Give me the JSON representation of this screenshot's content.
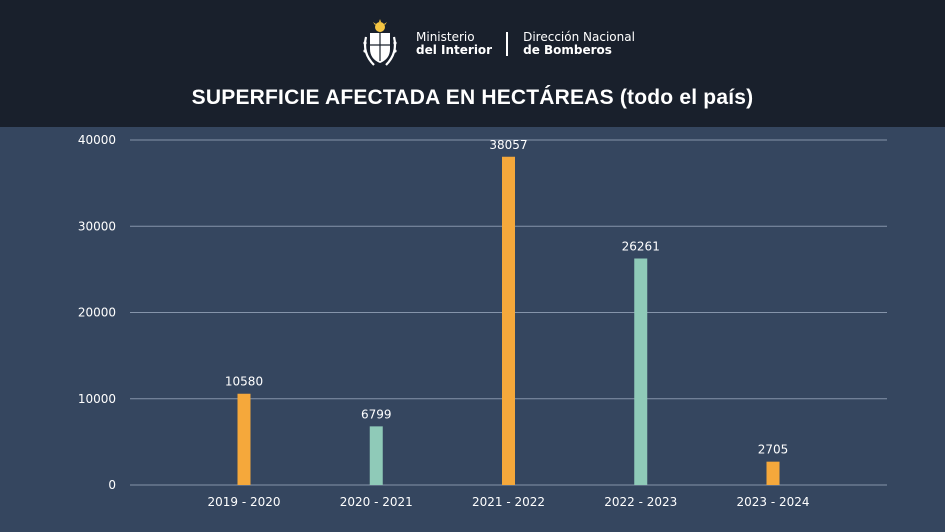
{
  "header": {
    "org_line1": "Ministerio",
    "org_line2": "del Interior",
    "dept_line1": "Dirección Nacional",
    "dept_line2": "de Bomberos"
  },
  "chart_data": {
    "type": "bar",
    "title": "SUPERFICIE AFECTADA EN HECTÁREAS (todo el país)",
    "categories": [
      "2019 - 2020",
      "2020 - 2021",
      "2021 - 2022",
      "2022 - 2023",
      "2023 - 2024"
    ],
    "values": [
      10580,
      6799,
      38057,
      26261,
      2705
    ],
    "colors": [
      "#f5a83b",
      "#8fcab8",
      "#f5a83b",
      "#8fcab8",
      "#f5a83b"
    ],
    "ylim": [
      0,
      40000
    ],
    "yticks": [
      0,
      10000,
      20000,
      30000,
      40000
    ],
    "xlabel": "",
    "ylabel": "",
    "grid": true,
    "legend": "none"
  },
  "colors": {
    "background": "#35465f",
    "header": "#19202c",
    "grid": "#8594aa",
    "text": "#ffffff"
  }
}
